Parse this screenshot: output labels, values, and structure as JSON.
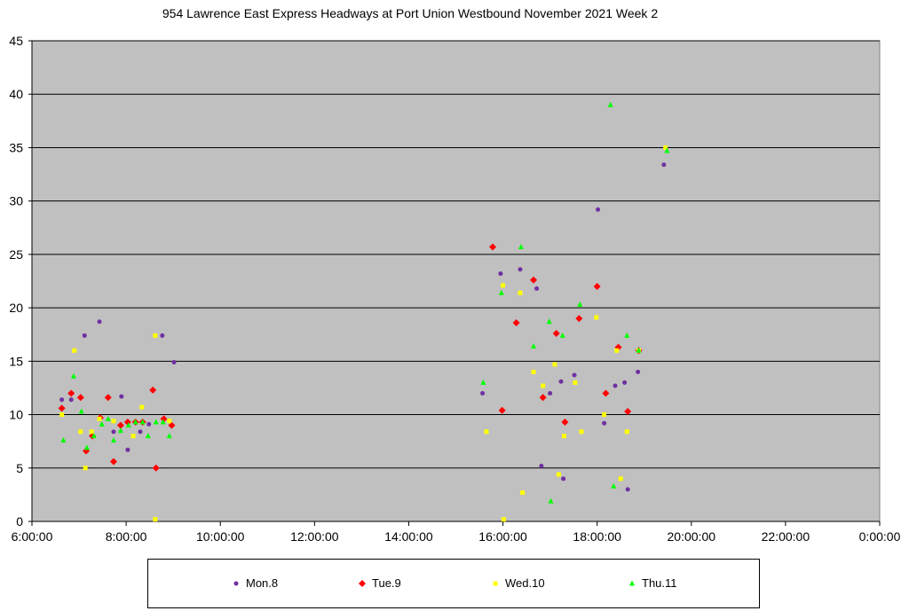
{
  "chart_data": {
    "type": "scatter",
    "title": "954 Lawrence East Express Headways at Port Union Westbound November 2021  Week 2",
    "xlabel": "",
    "ylabel": "",
    "xlim": [
      "6:00:00",
      "0:00:00"
    ],
    "ylim": [
      0,
      45
    ],
    "x_ticks": [
      "6:00:00",
      "8:00:00",
      "10:00:00",
      "12:00:00",
      "14:00:00",
      "16:00:00",
      "18:00:00",
      "20:00:00",
      "22:00:00",
      "0:00:00"
    ],
    "y_ticks": [
      "0",
      "5",
      "10",
      "15",
      "20",
      "25",
      "30",
      "35",
      "40",
      "45"
    ],
    "grid": "horizontal",
    "legend_position": "bottom",
    "plot_background": "#C0C0C0",
    "series": [
      {
        "name": "Mon.8",
        "marker": "circle",
        "color": "#7030A0",
        "points": [
          [
            "6:38",
            11.4
          ],
          [
            "6:50",
            11.4
          ],
          [
            "7:07",
            17.4
          ],
          [
            "7:26",
            18.7
          ],
          [
            "7:44",
            8.4
          ],
          [
            "7:54",
            11.7
          ],
          [
            "8:02",
            6.7
          ],
          [
            "8:18",
            8.4
          ],
          [
            "8:29",
            9.1
          ],
          [
            "8:46",
            17.4
          ],
          [
            "9:01",
            14.9
          ],
          [
            "15:34",
            12.0
          ],
          [
            "15:57",
            23.2
          ],
          [
            "16:22",
            23.6
          ],
          [
            "16:43",
            21.8
          ],
          [
            "16:49",
            5.2
          ],
          [
            "17:00",
            12.0
          ],
          [
            "17:14",
            13.1
          ],
          [
            "17:17",
            4.0
          ],
          [
            "17:31",
            13.7
          ],
          [
            "18:01",
            29.2
          ],
          [
            "18:09",
            9.2
          ],
          [
            "18:23",
            12.7
          ],
          [
            "18:35",
            13.0
          ],
          [
            "18:39",
            3.0
          ],
          [
            "18:52",
            14.0
          ],
          [
            "19:25",
            33.4
          ]
        ]
      },
      {
        "name": "Tue.9",
        "marker": "diamond",
        "color": "#FF0000",
        "points": [
          [
            "6:38",
            10.6
          ],
          [
            "6:50",
            12.0
          ],
          [
            "7:02",
            11.6
          ],
          [
            "7:09",
            6.6
          ],
          [
            "7:17",
            8.0
          ],
          [
            "7:27",
            9.7
          ],
          [
            "7:37",
            11.6
          ],
          [
            "7:44",
            5.6
          ],
          [
            "7:53",
            9.0
          ],
          [
            "8:02",
            9.3
          ],
          [
            "8:12",
            9.3
          ],
          [
            "8:21",
            9.3
          ],
          [
            "8:34",
            12.3
          ],
          [
            "8:38",
            5.0
          ],
          [
            "8:48",
            9.6
          ],
          [
            "8:58",
            9.0
          ],
          [
            "15:47",
            25.7
          ],
          [
            "15:59",
            10.4
          ],
          [
            "16:17",
            18.6
          ],
          [
            "16:39",
            22.6
          ],
          [
            "16:51",
            11.6
          ],
          [
            "17:08",
            17.6
          ],
          [
            "17:19",
            9.3
          ],
          [
            "17:37",
            19.0
          ],
          [
            "18:00",
            22.0
          ],
          [
            "18:11",
            12.0
          ],
          [
            "18:27",
            16.3
          ],
          [
            "18:39",
            10.3
          ],
          [
            "18:53",
            16.0
          ]
        ]
      },
      {
        "name": "Wed.10",
        "marker": "square",
        "color": "#FFFF00",
        "points": [
          [
            "6:38",
            10.0
          ],
          [
            "6:54",
            16.0
          ],
          [
            "7:02",
            8.4
          ],
          [
            "7:08",
            5.0
          ],
          [
            "7:16",
            8.4
          ],
          [
            "7:26",
            9.6
          ],
          [
            "7:44",
            9.4
          ],
          [
            "8:09",
            8.0
          ],
          [
            "8:20",
            10.7
          ],
          [
            "8:37",
            17.4
          ],
          [
            "8:37",
            0.2
          ],
          [
            "8:55",
            9.4
          ],
          [
            "15:39",
            8.4
          ],
          [
            "16:00",
            22.1
          ],
          [
            "16:01",
            0.2
          ],
          [
            "16:22",
            21.4
          ],
          [
            "16:25",
            2.7
          ],
          [
            "16:39",
            14.0
          ],
          [
            "16:51",
            12.7
          ],
          [
            "17:06",
            14.7
          ],
          [
            "17:11",
            4.4
          ],
          [
            "17:18",
            8.0
          ],
          [
            "17:32",
            13.0
          ],
          [
            "17:40",
            8.4
          ],
          [
            "17:59",
            19.1
          ],
          [
            "18:09",
            10.0
          ],
          [
            "18:25",
            16.0
          ],
          [
            "18:30",
            4.0
          ],
          [
            "18:38",
            8.4
          ],
          [
            "18:53",
            16.0
          ],
          [
            "19:27",
            35.0
          ]
        ]
      },
      {
        "name": "Thu.11",
        "marker": "triangle",
        "color": "#00FF00",
        "points": [
          [
            "6:40",
            7.6
          ],
          [
            "6:53",
            13.6
          ],
          [
            "7:03",
            10.3
          ],
          [
            "7:10",
            6.9
          ],
          [
            "7:19",
            8.0
          ],
          [
            "7:29",
            9.1
          ],
          [
            "7:37",
            9.6
          ],
          [
            "7:44",
            7.6
          ],
          [
            "7:53",
            8.5
          ],
          [
            "8:03",
            9.0
          ],
          [
            "8:12",
            9.3
          ],
          [
            "8:21",
            9.3
          ],
          [
            "8:28",
            8.0
          ],
          [
            "8:38",
            9.3
          ],
          [
            "8:47",
            9.3
          ],
          [
            "8:55",
            8.0
          ],
          [
            "15:35",
            13.0
          ],
          [
            "15:58",
            21.4
          ],
          [
            "16:23",
            25.7
          ],
          [
            "16:39",
            16.4
          ],
          [
            "16:59",
            18.7
          ],
          [
            "17:01",
            1.9
          ],
          [
            "17:16",
            17.4
          ],
          [
            "17:38",
            20.3
          ],
          [
            "18:17",
            39.0
          ],
          [
            "18:21",
            3.3
          ],
          [
            "18:38",
            17.4
          ],
          [
            "18:53",
            16.0
          ],
          [
            "19:29",
            34.7
          ]
        ]
      }
    ]
  }
}
